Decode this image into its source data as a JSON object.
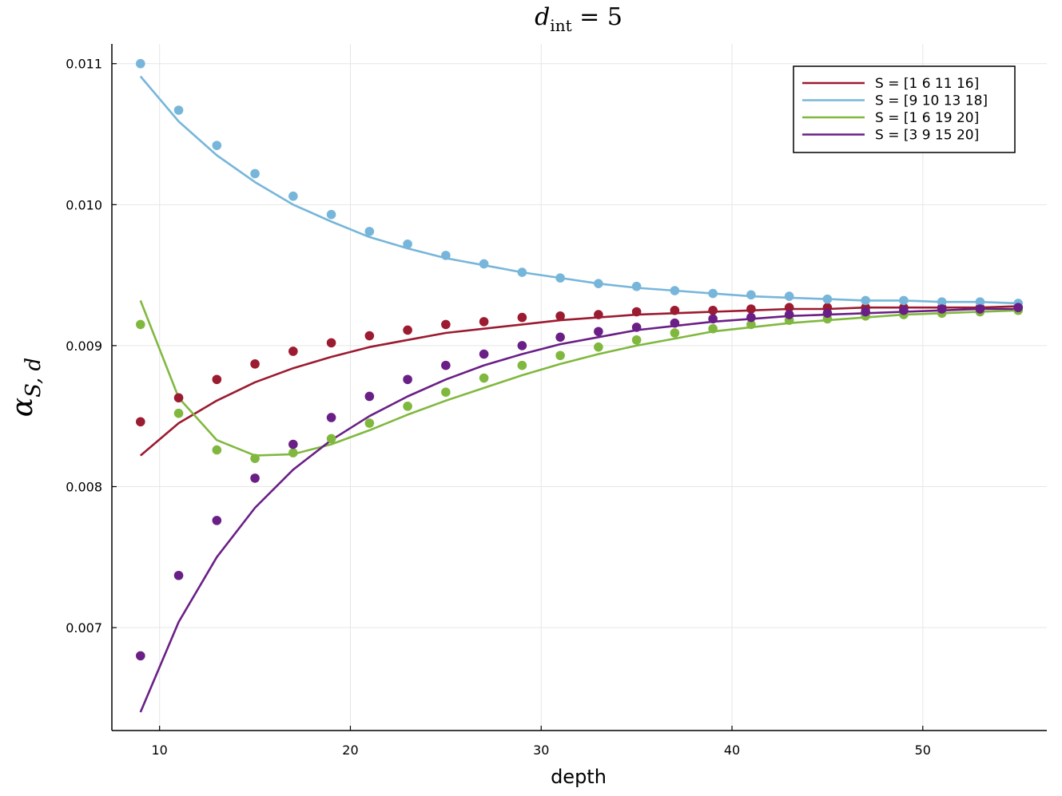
{
  "chart_data": {
    "type": "line",
    "title": "d_int = 5",
    "title_parts": {
      "symbol": "d",
      "subscript": "int",
      "rest": " = 5"
    },
    "xlabel": "depth",
    "ylabel_parts": {
      "symbol": "α",
      "subscript": "S, d"
    },
    "xlim": [
      7.5,
      56.5
    ],
    "ylim": [
      0.00627,
      0.01114
    ],
    "xticks": [
      10,
      20,
      30,
      40,
      50
    ],
    "xtick_labels": [
      "10",
      "20",
      "30",
      "40",
      "50"
    ],
    "yticks": [
      0.007,
      0.008,
      0.009,
      0.01,
      0.011
    ],
    "ytick_labels": [
      "0.007",
      "0.008",
      "0.009",
      "0.010",
      "0.011"
    ],
    "grid": true,
    "legend_position": "top-right",
    "x": [
      9,
      11,
      13,
      15,
      17,
      19,
      21,
      23,
      25,
      27,
      29,
      31,
      33,
      35,
      37,
      39,
      41,
      43,
      45,
      47,
      49,
      51,
      53,
      55
    ],
    "series": [
      {
        "name": "S = [1 6 11 16]",
        "color": "#9b1b30",
        "line": [
          0.00822,
          0.00845,
          0.00861,
          0.00874,
          0.00884,
          0.00892,
          0.00899,
          0.00904,
          0.00909,
          0.00912,
          0.00915,
          0.00918,
          0.0092,
          0.00922,
          0.00923,
          0.00924,
          0.00925,
          0.00926,
          0.00926,
          0.00927,
          0.00927,
          0.00927,
          0.00927,
          0.00928
        ],
        "points": [
          0.00846,
          0.00863,
          0.00876,
          0.00887,
          0.00896,
          0.00902,
          0.00907,
          0.00911,
          0.00915,
          0.00917,
          0.0092,
          0.00921,
          0.00922,
          0.00924,
          0.00925,
          0.00925,
          0.00926,
          0.00927,
          0.00927,
          0.00927,
          0.00927,
          0.00927,
          0.00927,
          0.00927
        ]
      },
      {
        "name": "S = [9 10 13 18]",
        "color": "#77b6da",
        "line": [
          0.01091,
          0.01059,
          0.01035,
          0.01016,
          0.01,
          0.00988,
          0.00977,
          0.00969,
          0.00962,
          0.00957,
          0.00952,
          0.00948,
          0.00944,
          0.00941,
          0.00939,
          0.00937,
          0.00935,
          0.00934,
          0.00933,
          0.00932,
          0.00932,
          0.00931,
          0.00931,
          0.0093
        ],
        "points": [
          0.011,
          0.01067,
          0.01042,
          0.01022,
          0.01006,
          0.00993,
          0.00981,
          0.00972,
          0.00964,
          0.00958,
          0.00952,
          0.00948,
          0.00944,
          0.00942,
          0.00939,
          0.00937,
          0.00936,
          0.00935,
          0.00933,
          0.00932,
          0.00932,
          0.00931,
          0.00931,
          0.0093
        ]
      },
      {
        "name": "S = [1 6 19 20]",
        "color": "#80b83f",
        "line": [
          0.00932,
          0.00863,
          0.00833,
          0.00822,
          0.00823,
          0.0083,
          0.0084,
          0.00851,
          0.00861,
          0.0087,
          0.00879,
          0.00887,
          0.00894,
          0.009,
          0.00905,
          0.0091,
          0.00913,
          0.00916,
          0.00918,
          0.0092,
          0.00922,
          0.00923,
          0.00924,
          0.00925
        ],
        "points": [
          0.00915,
          0.00852,
          0.00826,
          0.0082,
          0.00824,
          0.00834,
          0.00845,
          0.00857,
          0.00867,
          0.00877,
          0.00886,
          0.00893,
          0.00899,
          0.00904,
          0.00909,
          0.00912,
          0.00915,
          0.00918,
          0.00919,
          0.00921,
          0.00922,
          0.00923,
          0.00924,
          0.00925
        ]
      },
      {
        "name": "S = [3 9 15 20]",
        "color": "#6a1f86",
        "line": [
          0.0064,
          0.00704,
          0.0075,
          0.00785,
          0.00812,
          0.00833,
          0.0085,
          0.00864,
          0.00876,
          0.00886,
          0.00894,
          0.00901,
          0.00906,
          0.00911,
          0.00914,
          0.00917,
          0.00919,
          0.00921,
          0.00922,
          0.00923,
          0.00924,
          0.00925,
          0.00926,
          0.00926
        ],
        "points": [
          0.0068,
          0.00737,
          0.00776,
          0.00806,
          0.0083,
          0.00849,
          0.00864,
          0.00876,
          0.00886,
          0.00894,
          0.009,
          0.00906,
          0.0091,
          0.00913,
          0.00916,
          0.00919,
          0.0092,
          0.00922,
          0.00923,
          0.00924,
          0.00925,
          0.00926,
          0.00926,
          0.00927
        ]
      }
    ]
  }
}
